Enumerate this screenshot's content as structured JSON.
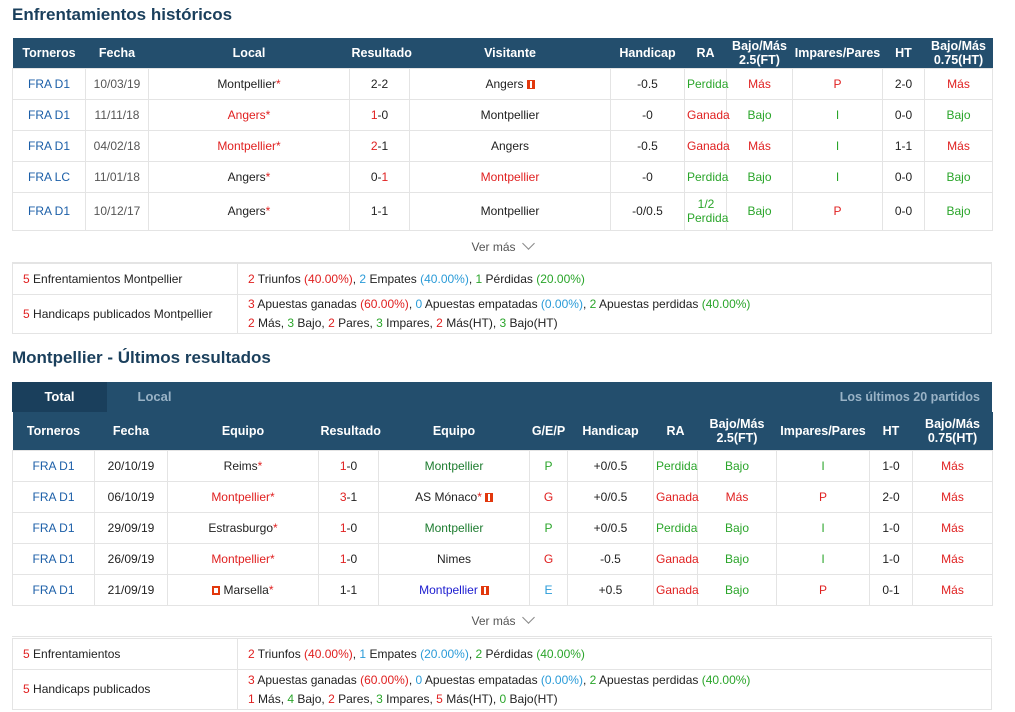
{
  "h2h": {
    "title": "Enfrentamientos históricos",
    "headers": [
      "Torneros",
      "Fecha",
      "Local",
      "Resultado",
      "Visitante",
      "Handicap",
      "RA",
      "Bajo/Más 2.5(FT)",
      "Impares/Pares",
      "HT",
      "Bajo/Más 0.75(HT)"
    ],
    "rows": [
      {
        "comp": "FRA D1",
        "date": "10/03/19",
        "home": "Montpellier",
        "home_cls": "",
        "home_star": "*",
        "home_flag": false,
        "res_h": "2",
        "res_sep": "-",
        "res_a": "2",
        "res_h_cls": "",
        "res_a_cls": "",
        "away": "Angers",
        "away_cls": "",
        "away_flag": true,
        "hc": "-0.5",
        "ra": "Perdida",
        "ra_cls": "green",
        "ou": "Más",
        "ou_cls": "red",
        "op": "P",
        "op_cls": "red",
        "ht": "2-0",
        "ou2": "Más",
        "ou2_cls": "red"
      },
      {
        "comp": "FRA D1",
        "date": "11/11/18",
        "home": "Angers",
        "home_cls": "red",
        "home_star": "*",
        "home_flag": false,
        "res_h": "1",
        "res_sep": "-",
        "res_a": "0",
        "res_h_cls": "red",
        "res_a_cls": "",
        "away": "Montpellier",
        "away_cls": "",
        "away_flag": false,
        "hc": "-0",
        "ra": "Ganada",
        "ra_cls": "red",
        "ou": "Bajo",
        "ou_cls": "green",
        "op": "I",
        "op_cls": "green",
        "ht": "0-0",
        "ou2": "Bajo",
        "ou2_cls": "green"
      },
      {
        "comp": "FRA D1",
        "date": "04/02/18",
        "home": "Montpellier",
        "home_cls": "red",
        "home_star": "*",
        "home_flag": false,
        "res_h": "2",
        "res_sep": "-",
        "res_a": "1",
        "res_h_cls": "red",
        "res_a_cls": "",
        "away": "Angers",
        "away_cls": "",
        "away_flag": false,
        "hc": "-0.5",
        "ra": "Ganada",
        "ra_cls": "red",
        "ou": "Más",
        "ou_cls": "red",
        "op": "I",
        "op_cls": "green",
        "ht": "1-1",
        "ou2": "Más",
        "ou2_cls": "red"
      },
      {
        "comp": "FRA LC",
        "date": "11/01/18",
        "home": "Angers",
        "home_cls": "",
        "home_star": "*",
        "home_flag": false,
        "res_h": "0",
        "res_sep": "-",
        "res_a": "1",
        "res_h_cls": "",
        "res_a_cls": "red",
        "away": "Montpellier",
        "away_cls": "red",
        "away_flag": false,
        "hc": "-0",
        "ra": "Perdida",
        "ra_cls": "green",
        "ou": "Bajo",
        "ou_cls": "green",
        "op": "I",
        "op_cls": "green",
        "ht": "0-0",
        "ou2": "Bajo",
        "ou2_cls": "green"
      },
      {
        "comp": "FRA D1",
        "date": "10/12/17",
        "home": "Angers",
        "home_cls": "",
        "home_star": "*",
        "home_flag": false,
        "res_h": "1",
        "res_sep": "-",
        "res_a": "1",
        "res_h_cls": "",
        "res_a_cls": "",
        "away": "Montpellier",
        "away_cls": "",
        "away_flag": false,
        "hc": "-0/0.5",
        "ra": "1/2 Perdida",
        "ra_cls": "green",
        "ou": "Bajo",
        "ou_cls": "green",
        "op": "P",
        "op_cls": "red",
        "ht": "0-0",
        "ou2": "Bajo",
        "ou2_cls": "green"
      }
    ],
    "ver_mas": "Ver más",
    "summary1": {
      "label_n": "5",
      "label": " Enfrentamientos Montpellier",
      "parts": [
        {
          "t": "2",
          "c": "red"
        },
        {
          "t": " Triunfos ",
          "c": ""
        },
        {
          "t": "(40.00%)",
          "c": "red"
        },
        {
          "t": ", ",
          "c": ""
        },
        {
          "t": "2",
          "c": "ltblue"
        },
        {
          "t": " Empates ",
          "c": ""
        },
        {
          "t": "(40.00%)",
          "c": "ltblue"
        },
        {
          "t": ", ",
          "c": ""
        },
        {
          "t": "1",
          "c": "green"
        },
        {
          "t": " Pérdidas ",
          "c": ""
        },
        {
          "t": "(20.00%)",
          "c": "green"
        }
      ]
    },
    "summary2": {
      "label_n": "5",
      "label": " Handicaps publicados Montpellier",
      "line1": [
        {
          "t": "3",
          "c": "red"
        },
        {
          "t": " Apuestas ganadas ",
          "c": ""
        },
        {
          "t": "(60.00%)",
          "c": "red"
        },
        {
          "t": ", ",
          "c": ""
        },
        {
          "t": "0",
          "c": "ltblue"
        },
        {
          "t": " Apuestas empatadas ",
          "c": ""
        },
        {
          "t": "(0.00%)",
          "c": "ltblue"
        },
        {
          "t": ", ",
          "c": ""
        },
        {
          "t": "2",
          "c": "green"
        },
        {
          "t": " Apuestas perdidas ",
          "c": ""
        },
        {
          "t": "(40.00%)",
          "c": "green"
        }
      ],
      "line2": [
        {
          "t": "2",
          "c": "red"
        },
        {
          "t": " Más, ",
          "c": ""
        },
        {
          "t": "3",
          "c": "green"
        },
        {
          "t": " Bajo, ",
          "c": ""
        },
        {
          "t": "2",
          "c": "red"
        },
        {
          "t": " Pares, ",
          "c": ""
        },
        {
          "t": "3",
          "c": "green"
        },
        {
          "t": " Impares, ",
          "c": ""
        },
        {
          "t": "2",
          "c": "red"
        },
        {
          "t": " Más(HT), ",
          "c": ""
        },
        {
          "t": "3",
          "c": "green"
        },
        {
          "t": " Bajo(HT)",
          "c": ""
        }
      ]
    }
  },
  "recent": {
    "title": "Montpellier - Últimos resultados",
    "tabs": [
      "Total",
      "Local"
    ],
    "note": "Los últimos 20 partidos",
    "headers": [
      "Torneros",
      "Fecha",
      "Equipo",
      "Resultado",
      "Equipo",
      "G/E/P",
      "Handicap",
      "RA",
      "Bajo/Más 2.5(FT)",
      "Impares/Pares",
      "HT",
      "Bajo/Más 0.75(HT)"
    ],
    "rows": [
      {
        "comp": "FRA D1",
        "date": "20/10/19",
        "home": "Reims",
        "home_cls": "",
        "home_flag": false,
        "res_h": "1",
        "res_a": "0",
        "res_h_cls": "red",
        "res_a_cls": "",
        "away": "Montpellier",
        "away_cls": "dkgreen",
        "away_flag": false,
        "gep": "P",
        "gep_cls": "green",
        "hc": "+0/0.5",
        "ra": "Perdida",
        "ra_cls": "green",
        "ou": "Bajo",
        "ou_cls": "green",
        "op": "I",
        "op_cls": "green",
        "ht": "1-0",
        "ou2": "Más",
        "ou2_cls": "red"
      },
      {
        "comp": "FRA D1",
        "date": "06/10/19",
        "home": "Montpellier",
        "home_cls": "red",
        "home_flag": false,
        "res_h": "3",
        "res_a": "1",
        "res_h_cls": "red",
        "res_a_cls": "",
        "away": "AS Mónaco",
        "away_cls": "",
        "away_flag": true,
        "gep": "G",
        "gep_cls": "red",
        "hc": "+0/0.5",
        "ra": "Ganada",
        "ra_cls": "red",
        "ou": "Más",
        "ou_cls": "red",
        "op": "P",
        "op_cls": "red",
        "ht": "2-0",
        "ou2": "Más",
        "ou2_cls": "red"
      },
      {
        "comp": "FRA D1",
        "date": "29/09/19",
        "home": "Estrasburgo",
        "home_cls": "",
        "home_flag": false,
        "res_h": "1",
        "res_a": "0",
        "res_h_cls": "red",
        "res_a_cls": "",
        "away": "Montpellier",
        "away_cls": "dkgreen",
        "away_flag": false,
        "gep": "P",
        "gep_cls": "green",
        "hc": "+0/0.5",
        "ra": "Perdida",
        "ra_cls": "green",
        "ou": "Bajo",
        "ou_cls": "green",
        "op": "I",
        "op_cls": "green",
        "ht": "1-0",
        "ou2": "Más",
        "ou2_cls": "red"
      },
      {
        "comp": "FRA D1",
        "date": "26/09/19",
        "home": "Montpellier",
        "home_cls": "red",
        "home_flag": false,
        "res_h": "1",
        "res_a": "0",
        "res_h_cls": "red",
        "res_a_cls": "",
        "away": "Nimes",
        "away_cls": "",
        "away_flag": false,
        "gep": "G",
        "gep_cls": "red",
        "hc": "-0.5",
        "ra": "Ganada",
        "ra_cls": "red",
        "ou": "Bajo",
        "ou_cls": "green",
        "op": "I",
        "op_cls": "green",
        "ht": "1-0",
        "ou2": "Más",
        "ou2_cls": "red"
      },
      {
        "comp": "FRA D1",
        "date": "21/09/19",
        "home": "Marsella",
        "home_cls": "",
        "home_flag": true,
        "res_h": "1",
        "res_a": "1",
        "res_h_cls": "",
        "res_a_cls": "",
        "away": "Montpellier",
        "away_cls": "navy",
        "away_flag": true,
        "gep": "E",
        "gep_cls": "ltblue",
        "hc": "+0.5",
        "ra": "Ganada",
        "ra_cls": "red",
        "ou": "Bajo",
        "ou_cls": "green",
        "op": "P",
        "op_cls": "red",
        "ht": "0-1",
        "ou2": "Más",
        "ou2_cls": "red"
      }
    ],
    "ver_mas": "Ver más",
    "summary1": {
      "label_n": "5",
      "label": " Enfrentamientos",
      "parts": [
        {
          "t": "2",
          "c": "red"
        },
        {
          "t": " Triunfos ",
          "c": ""
        },
        {
          "t": "(40.00%)",
          "c": "red"
        },
        {
          "t": ", ",
          "c": ""
        },
        {
          "t": "1",
          "c": "ltblue"
        },
        {
          "t": " Empates ",
          "c": ""
        },
        {
          "t": "(20.00%)",
          "c": "ltblue"
        },
        {
          "t": ", ",
          "c": ""
        },
        {
          "t": "2",
          "c": "green"
        },
        {
          "t": " Pérdidas ",
          "c": ""
        },
        {
          "t": "(40.00%)",
          "c": "green"
        }
      ]
    },
    "summary2": {
      "label_n": "5",
      "label": " Handicaps publicados",
      "line1": [
        {
          "t": "3",
          "c": "red"
        },
        {
          "t": " Apuestas ganadas ",
          "c": ""
        },
        {
          "t": "(60.00%)",
          "c": "red"
        },
        {
          "t": ", ",
          "c": ""
        },
        {
          "t": "0",
          "c": "ltblue"
        },
        {
          "t": " Apuestas empatadas ",
          "c": ""
        },
        {
          "t": "(0.00%)",
          "c": "ltblue"
        },
        {
          "t": ", ",
          "c": ""
        },
        {
          "t": "2",
          "c": "green"
        },
        {
          "t": " Apuestas perdidas ",
          "c": ""
        },
        {
          "t": "(40.00%)",
          "c": "green"
        }
      ],
      "line2": [
        {
          "t": "1",
          "c": "red"
        },
        {
          "t": " Más, ",
          "c": ""
        },
        {
          "t": "4",
          "c": "green"
        },
        {
          "t": " Bajo, ",
          "c": ""
        },
        {
          "t": "2",
          "c": "red"
        },
        {
          "t": " Pares, ",
          "c": ""
        },
        {
          "t": "3",
          "c": "green"
        },
        {
          "t": " Impares, ",
          "c": ""
        },
        {
          "t": "5",
          "c": "red"
        },
        {
          "t": " Más(HT), ",
          "c": ""
        },
        {
          "t": "0",
          "c": "green"
        },
        {
          "t": " Bajo(HT)",
          "c": ""
        }
      ]
    }
  },
  "star": "*",
  "colors": {
    "header": "#234e6d",
    "title": "#1a3f5c",
    "red": "#e02020",
    "green": "#2aa52a",
    "blue": "#1c5fa8"
  }
}
